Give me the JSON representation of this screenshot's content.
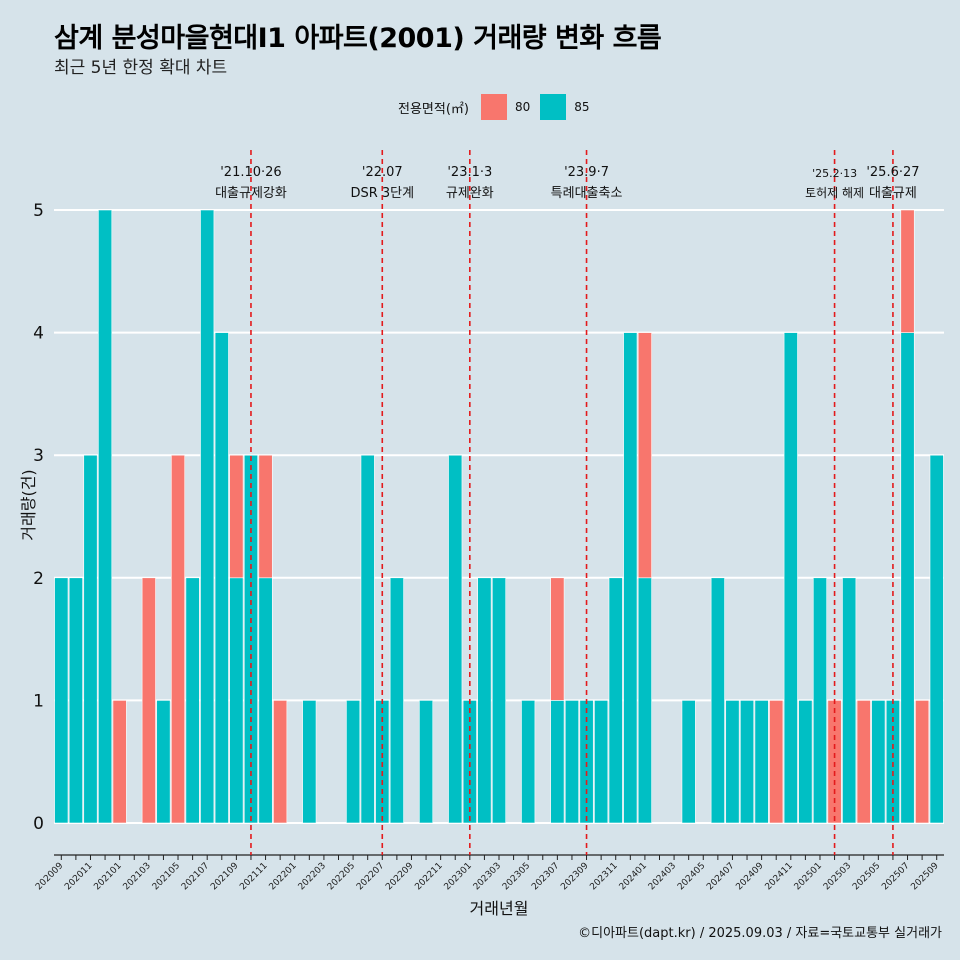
{
  "title": "삼계 분성마을현대I1 아파트(2001) 거래량 변화 흐름",
  "subtitle": "최근 5년 한정 확대 차트",
  "caption": "©디아파트(dapt.kr) / 2025.09.03 / 자료=국토교통부 실거래가",
  "legend": {
    "title": "전용면적(㎡)",
    "items": [
      {
        "label": "80",
        "color": "#f8766d"
      },
      {
        "label": "85",
        "color": "#00bfc4"
      }
    ]
  },
  "chart_data": {
    "type": "bar",
    "stacked": true,
    "xlabel": "거래년월",
    "ylabel": "거래량(건)",
    "ylim": [
      0,
      5
    ],
    "yticks": [
      0,
      1,
      2,
      3,
      4,
      5
    ],
    "grid": true,
    "legend_position": "top",
    "categories": [
      "202009",
      "202010",
      "202011",
      "202012",
      "202101",
      "202102",
      "202103",
      "202104",
      "202105",
      "202106",
      "202107",
      "202108",
      "202109",
      "202110",
      "202111",
      "202112",
      "202201",
      "202202",
      "202203",
      "202204",
      "202205",
      "202206",
      "202207",
      "202208",
      "202209",
      "202210",
      "202211",
      "202212",
      "202301",
      "202302",
      "202303",
      "202304",
      "202305",
      "202306",
      "202307",
      "202308",
      "202309",
      "202310",
      "202311",
      "202312",
      "202401",
      "202402",
      "202403",
      "202404",
      "202405",
      "202406",
      "202407",
      "202408",
      "202409",
      "202410",
      "202411",
      "202412",
      "202501",
      "202502",
      "202503",
      "202504",
      "202505",
      "202506",
      "202507",
      "202508",
      "202509"
    ],
    "series": [
      {
        "name": "80",
        "color": "#f8766d",
        "values": [
          0,
          0,
          0,
          0,
          1,
          0,
          2,
          0,
          3,
          0,
          0,
          0,
          1,
          0,
          1,
          1,
          0,
          0,
          0,
          0,
          0,
          0,
          0,
          0,
          0,
          0,
          0,
          0,
          0,
          0,
          0,
          0,
          0,
          0,
          1,
          0,
          0,
          0,
          0,
          0,
          2,
          0,
          0,
          0,
          0,
          0,
          0,
          0,
          0,
          1,
          0,
          0,
          0,
          1,
          0,
          1,
          0,
          0,
          1,
          1,
          0
        ]
      },
      {
        "name": "85",
        "color": "#00bfc4",
        "values": [
          2,
          2,
          3,
          5,
          0,
          0,
          0,
          1,
          0,
          2,
          5,
          4,
          2,
          3,
          2,
          0,
          0,
          1,
          0,
          0,
          1,
          3,
          1,
          2,
          0,
          1,
          0,
          3,
          1,
          2,
          2,
          0,
          1,
          0,
          1,
          1,
          1,
          1,
          2,
          4,
          2,
          0,
          0,
          1,
          0,
          2,
          1,
          1,
          1,
          0,
          4,
          1,
          2,
          0,
          2,
          0,
          1,
          1,
          4,
          0,
          3
        ]
      }
    ],
    "annotations": [
      {
        "x": "202110",
        "date": "'21.10·26",
        "label": "대출규제강화"
      },
      {
        "x": "202207",
        "date": "'22.07",
        "label": "DSR 3단계"
      },
      {
        "x": "202301",
        "date": "'23.1·3",
        "label": "규제완화"
      },
      {
        "x": "202309",
        "date": "'23.9·7",
        "label": "특례대출축소"
      },
      {
        "x": "202502",
        "date": "'25.2·13",
        "label": "토허제 해제"
      },
      {
        "x": "202506",
        "date": "'25.6·27",
        "label": "대출규제"
      }
    ],
    "vline_color": "#e31a1c"
  }
}
